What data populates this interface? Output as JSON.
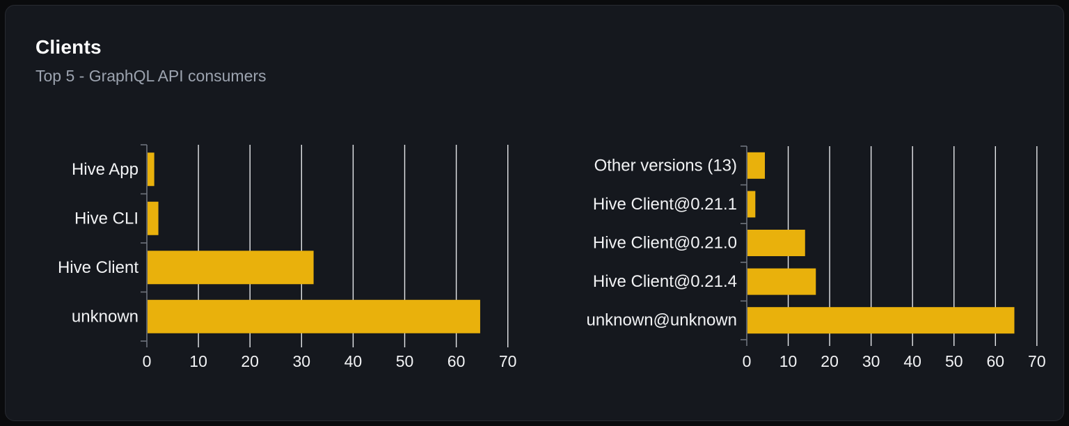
{
  "chart_data": {
    "title": "Clients",
    "subtitle": "Top 5 - GraphQL API consumers",
    "charts": [
      {
        "type": "bar",
        "orientation": "horizontal",
        "name": "clients-by-name",
        "categories": [
          "Hive App",
          "Hive CLI",
          "Hive Client",
          "unknown"
        ],
        "values": [
          1.3,
          2.1,
          32.2,
          64.5
        ],
        "xticks": [
          0,
          10,
          20,
          30,
          40,
          50,
          60,
          70
        ],
        "xlim": [
          0,
          75
        ],
        "grid": true,
        "legend": false
      },
      {
        "type": "bar",
        "orientation": "horizontal",
        "name": "clients-by-version",
        "categories": [
          "Other versions (13)",
          "Hive Client@0.21.1",
          "Hive Client@0.21.0",
          "Hive Client@0.21.4",
          "unknown@unknown"
        ],
        "values": [
          4.2,
          1.9,
          13.9,
          16.5,
          64.4
        ],
        "xticks": [
          0,
          10,
          20,
          30,
          40,
          50,
          60,
          70
        ],
        "xlim": [
          0,
          75
        ],
        "grid": true,
        "legend": false
      }
    ]
  },
  "colors": {
    "page_background": "#0a0b0d",
    "card_background": "#15181e",
    "card_border": "#272a31",
    "title": "#ffffff",
    "subtitle": "#9ca3af",
    "bar": "#e9b10c",
    "gridline": "#e7e9ec",
    "axis": "#6f747d",
    "label": "#f2f3f5"
  }
}
